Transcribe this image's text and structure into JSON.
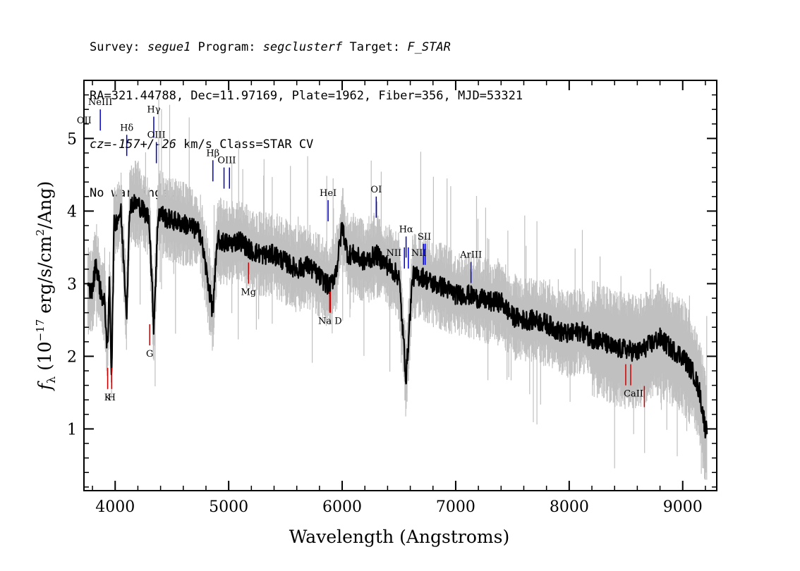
{
  "header": {
    "line1": {
      "survey_label": "Survey: ",
      "survey": "segue1",
      "program_label": " Program: ",
      "program": "segclusterf",
      "target_label": " Target: ",
      "target": "F_STAR"
    },
    "line2": "RA=321.44788, Dec=11.97169, Plate=1962, Fiber=356, MJD=53321",
    "line3": {
      "cz": "cz=-157+/-26",
      "rest": " km/s Class=STAR CV"
    },
    "line4": "No warnings."
  },
  "colors": {
    "flux": "#000000",
    "error_band": "#c0c0c0",
    "emission_marker": "#0000cc",
    "absorption_marker": "#cc0000",
    "frame": "#000000"
  },
  "chart_data": {
    "type": "line",
    "xlabel": "Wavelength (Angstroms)",
    "ylabel": "f_λ (10^-17 erg/s/cm^2/Ang)",
    "ylabel_parts": {
      "f": "f",
      "sub": "λ",
      "pre": " (10",
      "exp1": "−17",
      "mid": " erg/s/cm",
      "exp2": "2",
      "post": "/Ang)"
    },
    "xlim": [
      3725,
      9300
    ],
    "ylim": [
      0.15,
      5.8
    ],
    "xticks": [
      4000,
      5000,
      6000,
      7000,
      8000,
      9000
    ],
    "yticks": [
      1,
      2,
      3,
      4,
      5
    ],
    "grid": false,
    "series": [
      {
        "name": "flux",
        "style": "black line, noisy",
        "x": [
          3800,
          3830,
          3870,
          3910,
          3933,
          3950,
          3968,
          3990,
          4050,
          4101,
          4130,
          4200,
          4300,
          4340,
          4380,
          4450,
          4550,
          4650,
          4750,
          4861,
          4900,
          5000,
          5100,
          5200,
          5300,
          5400,
          5500,
          5600,
          5700,
          5800,
          5893,
          5950,
          6000,
          6050,
          6100,
          6200,
          6300,
          6400,
          6500,
          6563,
          6620,
          6700,
          6800,
          6900,
          7000,
          7100,
          7200,
          7300,
          7400,
          7500,
          7600,
          7700,
          7800,
          7900,
          8000,
          8100,
          8200,
          8300,
          8400,
          8500,
          8600,
          8700,
          8800,
          8900,
          9000,
          9100,
          9150,
          9200
        ],
        "y": [
          2.9,
          3.3,
          2.9,
          2.7,
          2.0,
          3.1,
          1.7,
          3.8,
          4.0,
          2.6,
          4.1,
          4.1,
          3.9,
          2.4,
          4.0,
          3.9,
          3.85,
          3.8,
          3.7,
          2.6,
          3.6,
          3.55,
          3.6,
          3.45,
          3.4,
          3.4,
          3.3,
          3.2,
          3.25,
          3.1,
          2.95,
          3.2,
          3.8,
          3.4,
          3.4,
          3.3,
          3.4,
          3.25,
          3.1,
          1.7,
          3.1,
          3.1,
          3.0,
          2.95,
          2.85,
          2.85,
          2.8,
          2.75,
          2.75,
          2.55,
          2.5,
          2.5,
          2.45,
          2.35,
          2.3,
          2.35,
          2.25,
          2.2,
          2.1,
          2.1,
          2.05,
          2.15,
          2.25,
          2.1,
          2.0,
          1.75,
          1.5,
          1.0
        ]
      }
    ],
    "emission_lines": [
      {
        "label": "OII",
        "x": 3727,
        "y": 5.15
      },
      {
        "label": "NeIII",
        "x": 3869,
        "y": 5.4
      },
      {
        "label": "Hδ",
        "x": 4102,
        "y": 5.05
      },
      {
        "label": "Hγ",
        "x": 4340,
        "y": 5.3
      },
      {
        "label": "OIII",
        "x": 4363,
        "y": 4.95
      },
      {
        "label": "Hβ",
        "x": 4861,
        "y": 4.7
      },
      {
        "label": "OIII",
        "x": 4959,
        "y": 4.6
      },
      {
        "label": "OIII",
        "x": 5007,
        "y": 4.6
      },
      {
        "label": "HeI",
        "x": 5876,
        "y": 4.15
      },
      {
        "label": "OI",
        "x": 6300,
        "y": 4.2
      },
      {
        "label": "NII",
        "x": 6548,
        "y": 3.5
      },
      {
        "label": "Hα",
        "x": 6563,
        "y": 3.65
      },
      {
        "label": "NII",
        "x": 6583,
        "y": 3.5
      },
      {
        "label": "SII",
        "x": 6716,
        "y": 3.55
      },
      {
        "label": "SII",
        "x": 6731,
        "y": 3.55
      },
      {
        "label": "ArIII",
        "x": 7135,
        "y": 3.3
      }
    ],
    "absorption_lines": [
      {
        "label": "K",
        "x": 3934,
        "y": 1.55
      },
      {
        "label": "H",
        "x": 3969,
        "y": 1.55
      },
      {
        "label": "G",
        "x": 4304,
        "y": 2.15
      },
      {
        "label": "Mg",
        "x": 5175,
        "y": 3.0
      },
      {
        "label": "Na",
        "x": 5890,
        "y": 2.6
      },
      {
        "label": "D",
        "x": 5896,
        "y": 2.6
      },
      {
        "label": "CaII",
        "x": 8498,
        "y": 1.6
      },
      {
        "label": "CaII",
        "x": 8542,
        "y": 1.6
      },
      {
        "label": "CaII",
        "x": 8662,
        "y": 1.3
      }
    ],
    "marker_label_groups": [
      {
        "text": "OII",
        "x": 3727,
        "y": 5.15,
        "kind": "emission",
        "pos": "above"
      },
      {
        "text": "NeIII",
        "x": 3869,
        "y": 5.4,
        "kind": "emission",
        "pos": "above"
      },
      {
        "text": "Hδ",
        "x": 4102,
        "y": 5.05,
        "kind": "emission",
        "pos": "above"
      },
      {
        "text": "Hγ",
        "x": 4340,
        "y": 5.3,
        "kind": "emission",
        "pos": "above"
      },
      {
        "text": "OIII",
        "x": 4363,
        "y": 4.95,
        "kind": "emission",
        "pos": "above"
      },
      {
        "text": "Hβ",
        "x": 4861,
        "y": 4.7,
        "kind": "emission",
        "pos": "above"
      },
      {
        "text": "OIII",
        "x": 4983,
        "y": 4.6,
        "kind": "emission",
        "pos": "above"
      },
      {
        "text": "HeI",
        "x": 5876,
        "y": 4.15,
        "kind": "emission",
        "pos": "above"
      },
      {
        "text": "OI",
        "x": 6300,
        "y": 4.2,
        "kind": "emission",
        "pos": "above"
      },
      {
        "text": "NII",
        "x": 6548,
        "y": 3.5,
        "kind": "emission",
        "pos": "above-left"
      },
      {
        "text": "Hα",
        "x": 6563,
        "y": 3.65,
        "kind": "emission",
        "pos": "above"
      },
      {
        "text": "NII",
        "x": 6583,
        "y": 3.5,
        "kind": "emission",
        "pos": "above-right"
      },
      {
        "text": "SII",
        "x": 6724,
        "y": 3.55,
        "kind": "emission",
        "pos": "above"
      },
      {
        "text": "ArIII",
        "x": 7135,
        "y": 3.3,
        "kind": "emission",
        "pos": "above"
      },
      {
        "text": "K",
        "x": 3934,
        "y": 1.55,
        "kind": "absorption",
        "pos": "below"
      },
      {
        "text": "H",
        "x": 3969,
        "y": 1.55,
        "kind": "absorption",
        "pos": "below"
      },
      {
        "text": "G",
        "x": 4304,
        "y": 2.15,
        "kind": "absorption",
        "pos": "below"
      },
      {
        "text": "Mg",
        "x": 5175,
        "y": 3.0,
        "kind": "absorption",
        "pos": "below"
      },
      {
        "text": "Na  D",
        "x": 5893,
        "y": 2.6,
        "kind": "absorption",
        "pos": "below"
      },
      {
        "text": "CaII",
        "x": 8567,
        "y": 1.6,
        "kind": "absorption",
        "pos": "below"
      }
    ]
  }
}
